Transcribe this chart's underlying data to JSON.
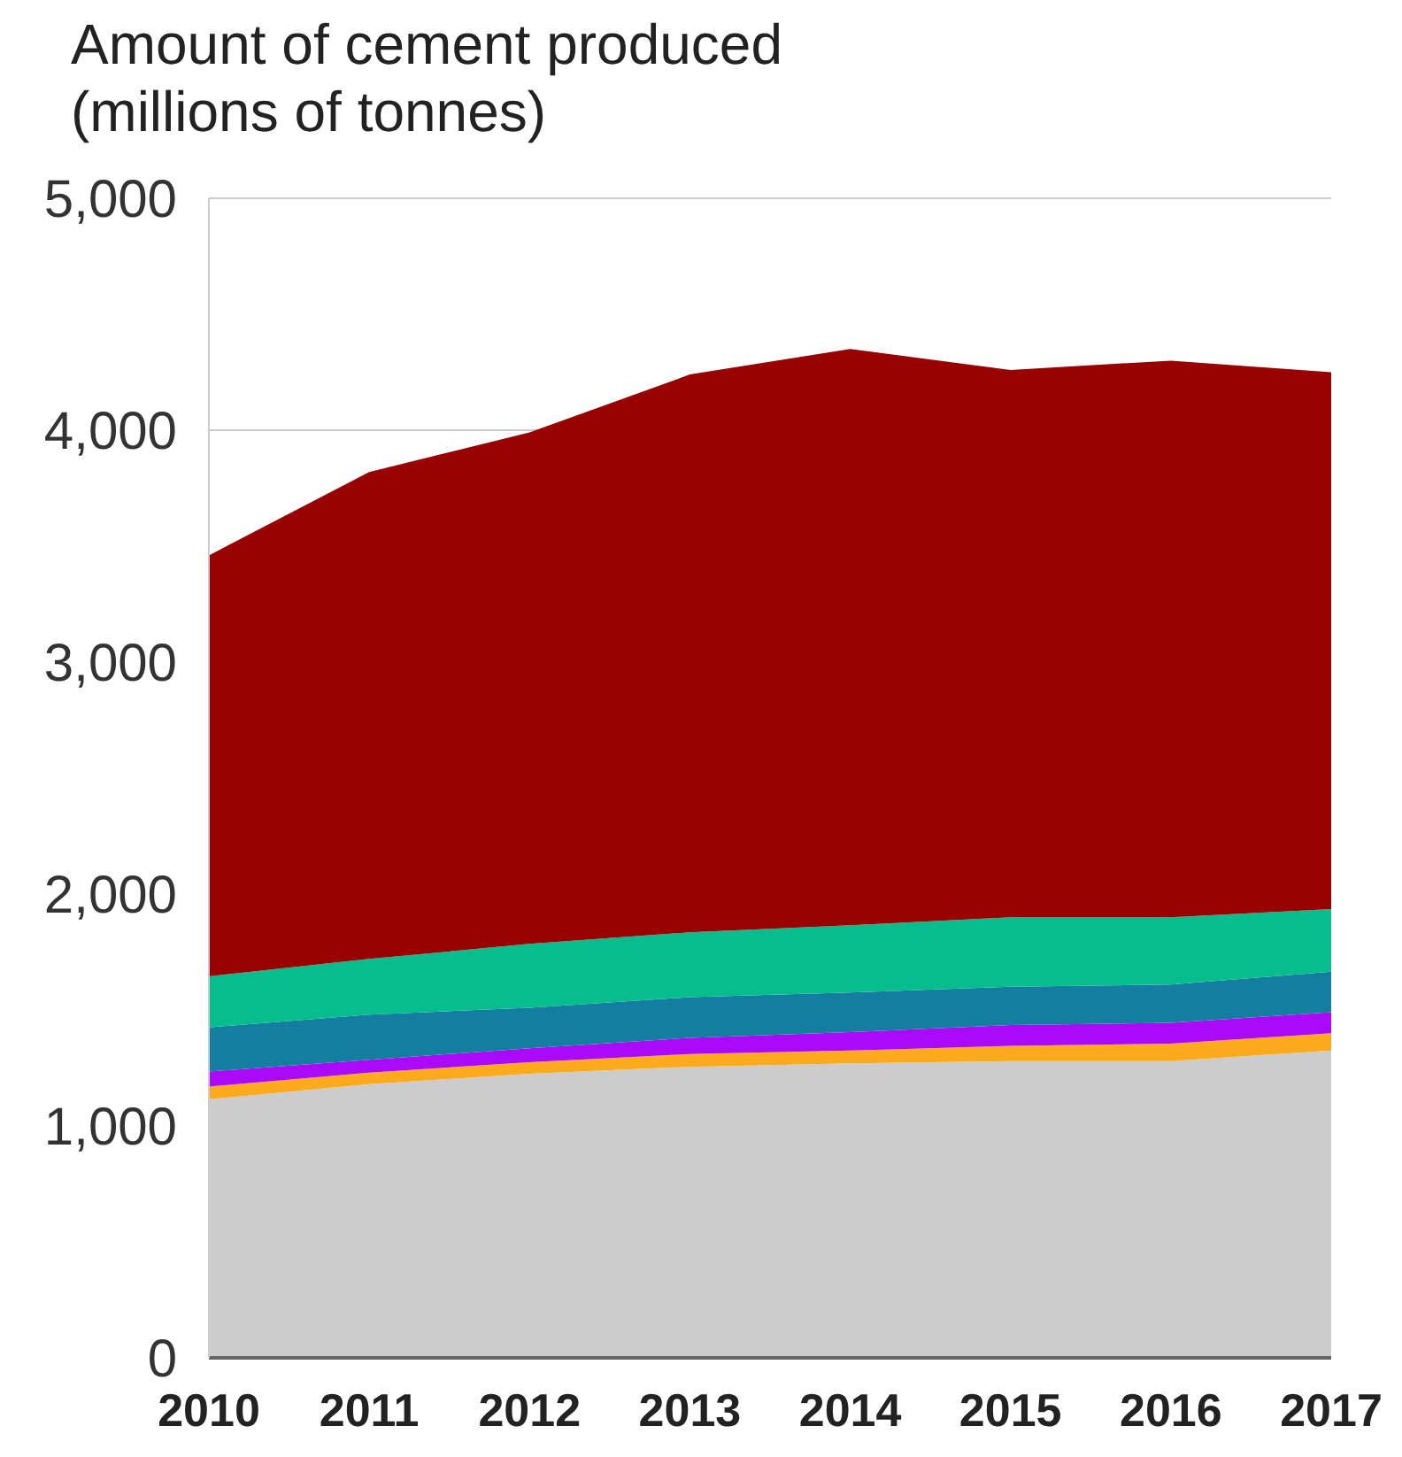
{
  "chart_data": {
    "type": "area",
    "title": "Amount of cement produced",
    "subtitle": "(millions of tonnes)",
    "categories": [
      "2010",
      "2011",
      "2012",
      "2013",
      "2014",
      "2015",
      "2016",
      "2017"
    ],
    "stacked": true,
    "series": [
      {
        "color": "#cccccc",
        "values": [
          1115,
          1180,
          1225,
          1255,
          1270,
          1280,
          1280,
          1325
        ]
      },
      {
        "color": "#fbaa1d",
        "values": [
          55,
          50,
          50,
          55,
          55,
          65,
          75,
          75
        ]
      },
      {
        "color": "#aa0af7",
        "values": [
          65,
          55,
          60,
          70,
          80,
          90,
          90,
          90
        ]
      },
      {
        "color": "#137ea0",
        "values": [
          190,
          195,
          175,
          175,
          170,
          165,
          165,
          175
        ]
      },
      {
        "color": "#08bd8d",
        "values": [
          220,
          240,
          275,
          280,
          290,
          300,
          290,
          270
        ]
      },
      {
        "color": "#990000",
        "values": [
          1815,
          2100,
          2205,
          2405,
          2485,
          2360,
          2400,
          2315
        ]
      }
    ],
    "ylim": [
      0,
      5000
    ],
    "yticks": [
      0,
      {
        "value": 1000,
        "label": "1,000"
      },
      {
        "value": 2000,
        "label": "2,000"
      },
      {
        "value": 3000,
        "label": "3,000"
      },
      {
        "value": 4000,
        "label": "4,000"
      },
      {
        "value": 5000,
        "label": "5,000"
      }
    ],
    "grid": "y"
  }
}
